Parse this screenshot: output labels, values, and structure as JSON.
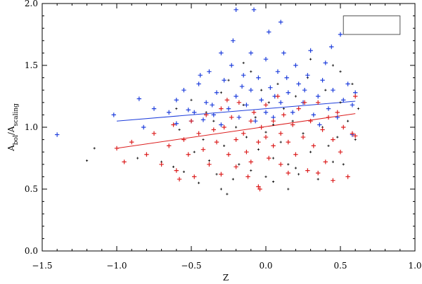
{
  "chart_data": {
    "type": "scatter",
    "title": "",
    "xlabel": "Z",
    "ylabel_main": "A",
    "ylabel_sub1": "bol",
    "ylabel_sep": "/",
    "ylabel_sub2": "scaling",
    "xlim": [
      -1.5,
      1.0
    ],
    "ylim": [
      0.0,
      2.0
    ],
    "xticks": [
      -1.5,
      -1.0,
      -0.5,
      0.0,
      0.5,
      1.0
    ],
    "xtick_labels": [
      "−1.5",
      "−1.0",
      "−0.5",
      "0.0",
      "0.5",
      "1.0"
    ],
    "yticks": [
      0.0,
      0.5,
      1.0,
      1.5,
      2.0
    ],
    "ytick_labels": [
      "0.0",
      "0.5",
      "1.0",
      "1.5",
      "2.0"
    ],
    "grid": false,
    "legend": "top-right (empty box)",
    "series": [
      {
        "color": "#000000",
        "marker": "small-plus",
        "points": [
          [
            -1.2,
            0.73
          ],
          [
            -1.15,
            0.83
          ],
          [
            -0.86,
            0.75
          ],
          [
            -0.7,
            0.72
          ],
          [
            -0.62,
            0.68
          ],
          [
            -0.55,
            0.64
          ],
          [
            -0.58,
            0.98
          ],
          [
            -0.5,
            1.22
          ],
          [
            -0.45,
            0.55
          ],
          [
            -0.42,
            0.9
          ],
          [
            -0.4,
            1.12
          ],
          [
            -0.38,
            0.73
          ],
          [
            -0.35,
            1.05
          ],
          [
            -0.33,
            0.62
          ],
          [
            -0.3,
            0.5
          ],
          [
            -0.3,
            1.28
          ],
          [
            -0.28,
            0.85
          ],
          [
            -0.25,
            1.38
          ],
          [
            -0.22,
            0.58
          ],
          [
            -0.2,
            1.0
          ],
          [
            -0.18,
            0.7
          ],
          [
            -0.15,
            1.18
          ],
          [
            -0.13,
            0.92
          ],
          [
            -0.1,
            1.45
          ],
          [
            -0.1,
            0.65
          ],
          [
            -0.07,
            1.08
          ],
          [
            -0.05,
            0.82
          ],
          [
            -0.03,
            1.3
          ],
          [
            0.0,
            0.96
          ],
          [
            0.0,
            0.6
          ],
          [
            0.02,
            1.2
          ],
          [
            0.05,
            1.02
          ],
          [
            0.05,
            0.75
          ],
          [
            0.08,
            1.35
          ],
          [
            0.1,
            0.88
          ],
          [
            0.12,
            1.15
          ],
          [
            0.15,
            0.7
          ],
          [
            0.18,
            1.05
          ],
          [
            0.2,
            1.25
          ],
          [
            0.22,
            0.62
          ],
          [
            0.25,
            0.95
          ],
          [
            0.28,
            1.4
          ],
          [
            0.3,
            0.8
          ],
          [
            0.32,
            1.1
          ],
          [
            0.35,
            0.58
          ],
          [
            0.38,
            1.0
          ],
          [
            0.4,
            1.3
          ],
          [
            0.42,
            0.85
          ],
          [
            0.45,
            1.5
          ],
          [
            0.48,
            0.92
          ],
          [
            0.5,
            1.2
          ],
          [
            0.52,
            0.7
          ],
          [
            0.55,
            1.05
          ],
          [
            0.58,
            1.35
          ],
          [
            0.6,
            0.9
          ],
          [
            0.62,
            1.15
          ],
          [
            -0.26,
            0.46
          ],
          [
            0.05,
            0.56
          ],
          [
            0.45,
            0.72
          ],
          [
            -0.48,
            0.8
          ],
          [
            0.3,
            1.55
          ],
          [
            0.5,
            1.45
          ],
          [
            -0.15,
            1.52
          ],
          [
            0.15,
            0.5
          ],
          [
            -0.6,
            1.15
          ],
          [
            0.2,
            0.67
          ]
        ]
      },
      {
        "color": "#1f3fdc",
        "marker": "plus",
        "points": [
          [
            -1.4,
            0.94
          ],
          [
            -1.02,
            1.1
          ],
          [
            -0.85,
            1.23
          ],
          [
            -0.82,
            1.0
          ],
          [
            -0.75,
            1.15
          ],
          [
            -0.6,
            1.22
          ],
          [
            -0.6,
            1.03
          ],
          [
            -0.55,
            1.3
          ],
          [
            -0.52,
            1.14
          ],
          [
            -0.48,
            1.12
          ],
          [
            -0.45,
            1.35
          ],
          [
            -0.42,
            1.06
          ],
          [
            -0.4,
            1.2
          ],
          [
            -0.38,
            1.45
          ],
          [
            -0.35,
            1.1
          ],
          [
            -0.33,
            1.28
          ],
          [
            -0.3,
            1.02
          ],
          [
            -0.28,
            1.38
          ],
          [
            -0.25,
            1.15
          ],
          [
            -0.23,
            1.5
          ],
          [
            -0.2,
            1.95
          ],
          [
            -0.2,
            1.25
          ],
          [
            -0.18,
            1.08
          ],
          [
            -0.15,
            1.42
          ],
          [
            -0.13,
            1.18
          ],
          [
            -0.1,
            1.6
          ],
          [
            -0.1,
            1.3
          ],
          [
            -0.08,
            1.95
          ],
          [
            -0.07,
            1.05
          ],
          [
            -0.05,
            1.4
          ],
          [
            -0.03,
            1.22
          ],
          [
            0.0,
            1.55
          ],
          [
            0.0,
            1.12
          ],
          [
            0.02,
            1.77
          ],
          [
            0.03,
            1.32
          ],
          [
            0.05,
            1.08
          ],
          [
            0.08,
            1.45
          ],
          [
            0.1,
            1.2
          ],
          [
            0.12,
            1.6
          ],
          [
            0.15,
            1.28
          ],
          [
            0.18,
            1.12
          ],
          [
            0.2,
            1.5
          ],
          [
            0.22,
            1.35
          ],
          [
            0.25,
            1.2
          ],
          [
            0.28,
            1.42
          ],
          [
            0.3,
            1.62
          ],
          [
            0.32,
            1.1
          ],
          [
            0.35,
            1.25
          ],
          [
            0.38,
            1.38
          ],
          [
            0.4,
            1.52
          ],
          [
            0.42,
            1.15
          ],
          [
            0.45,
            1.3
          ],
          [
            0.48,
            1.08
          ],
          [
            0.5,
            1.75
          ],
          [
            0.52,
            1.22
          ],
          [
            0.55,
            1.35
          ],
          [
            0.58,
            1.18
          ],
          [
            0.6,
            1.28
          ],
          [
            -0.65,
            1.12
          ],
          [
            -0.5,
            1.05
          ],
          [
            -0.36,
            1.18
          ],
          [
            -0.16,
            1.33
          ],
          [
            0.06,
            1.25
          ],
          [
            0.26,
            1.3
          ],
          [
            -0.44,
            1.42
          ],
          [
            0.14,
            1.4
          ],
          [
            -0.3,
            1.6
          ],
          [
            0.36,
            1.02
          ],
          [
            0.58,
            0.94
          ],
          [
            -0.22,
            1.7
          ],
          [
            0.1,
            1.85
          ],
          [
            0.44,
            1.65
          ]
        ]
      },
      {
        "color": "#dc1f1f",
        "marker": "plus",
        "points": [
          [
            -1.0,
            0.83
          ],
          [
            -0.95,
            0.72
          ],
          [
            -0.9,
            0.88
          ],
          [
            -0.8,
            0.78
          ],
          [
            -0.75,
            0.95
          ],
          [
            -0.7,
            0.7
          ],
          [
            -0.65,
            0.85
          ],
          [
            -0.62,
            1.02
          ],
          [
            -0.6,
            0.65
          ],
          [
            -0.55,
            0.9
          ],
          [
            -0.52,
            0.78
          ],
          [
            -0.5,
            1.05
          ],
          [
            -0.48,
            0.6
          ],
          [
            -0.45,
            0.95
          ],
          [
            -0.42,
            0.82
          ],
          [
            -0.4,
            1.1
          ],
          [
            -0.38,
            0.7
          ],
          [
            -0.35,
            0.98
          ],
          [
            -0.33,
            0.88
          ],
          [
            -0.3,
            1.15
          ],
          [
            -0.3,
            0.62
          ],
          [
            -0.28,
            1.0
          ],
          [
            -0.25,
            0.78
          ],
          [
            -0.23,
            1.08
          ],
          [
            -0.2,
            0.9
          ],
          [
            -0.2,
            0.68
          ],
          [
            -0.18,
            1.2
          ],
          [
            -0.15,
            0.95
          ],
          [
            -0.13,
            0.8
          ],
          [
            -0.1,
            1.05
          ],
          [
            -0.1,
            0.72
          ],
          [
            -0.08,
            1.12
          ],
          [
            -0.05,
            0.88
          ],
          [
            -0.05,
            0.52
          ],
          [
            -0.03,
            1.0
          ],
          [
            0.0,
            0.92
          ],
          [
            0.0,
            1.18
          ],
          [
            0.02,
            0.75
          ],
          [
            0.05,
            1.05
          ],
          [
            0.05,
            0.85
          ],
          [
            0.08,
            1.25
          ],
          [
            0.1,
            0.95
          ],
          [
            0.1,
            0.7
          ],
          [
            0.12,
            1.1
          ],
          [
            0.15,
            0.88
          ],
          [
            0.18,
            1.02
          ],
          [
            0.2,
            0.78
          ],
          [
            0.22,
            1.15
          ],
          [
            0.25,
            0.92
          ],
          [
            0.28,
            0.65
          ],
          [
            0.3,
            1.05
          ],
          [
            0.32,
            0.85
          ],
          [
            0.35,
            1.2
          ],
          [
            0.38,
            0.98
          ],
          [
            0.4,
            0.72
          ],
          [
            0.42,
            1.08
          ],
          [
            0.45,
            0.9
          ],
          [
            0.48,
            1.12
          ],
          [
            0.5,
            0.8
          ],
          [
            0.52,
            1.0
          ],
          [
            0.55,
            0.6
          ],
          [
            0.58,
            0.95
          ],
          [
            0.6,
            1.25
          ],
          [
            0.6,
            0.93
          ],
          [
            -0.04,
            0.5
          ],
          [
            0.35,
            0.63
          ],
          [
            -0.58,
            0.58
          ],
          [
            0.15,
            0.63
          ],
          [
            -0.26,
            1.22
          ],
          [
            0.45,
            0.57
          ],
          [
            -0.12,
            0.6
          ],
          [
            0.26,
            1.2
          ]
        ]
      }
    ],
    "fit_lines": [
      {
        "color": "#1f3fdc",
        "from": [
          -1.0,
          1.05
        ],
        "to": [
          0.6,
          1.21
        ]
      },
      {
        "color": "#dc1f1f",
        "from": [
          -1.0,
          0.83
        ],
        "to": [
          0.6,
          1.11
        ]
      }
    ],
    "legend_box": {
      "x0": 0.52,
      "x1": 0.9,
      "y0": 1.75,
      "y1": 1.9
    }
  }
}
